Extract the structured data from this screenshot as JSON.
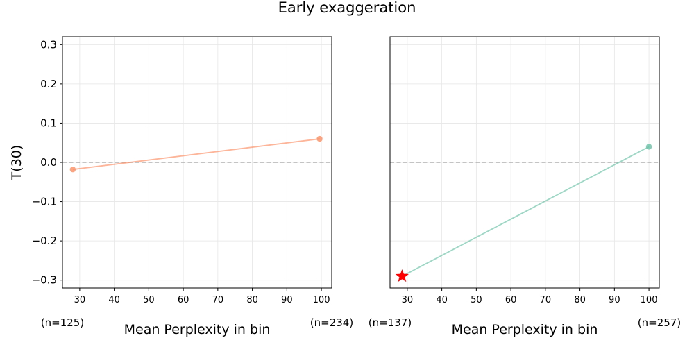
{
  "suptitle": "Early exaggeration",
  "chart_data": [
    {
      "type": "line",
      "xlabel": "Mean Perplexity in bin",
      "ylabel": "T(30)",
      "xlim": [
        25,
        103
      ],
      "ylim": [
        -0.32,
        0.32
      ],
      "xticks": [
        30,
        40,
        50,
        60,
        70,
        80,
        90,
        100
      ],
      "yticks": [
        -0.3,
        -0.2,
        -0.1,
        0.0,
        0.1,
        0.2,
        0.3
      ],
      "ytick_labels": [
        "−0.3",
        "−0.2",
        "−0.1",
        "0.0",
        "0.1",
        "0.2",
        "0.3"
      ],
      "show_yticks": true,
      "grid": true,
      "reference_line": 0,
      "color": "#fc8d62",
      "series": [
        {
          "x": [
            28,
            99.5
          ],
          "y": [
            -0.018,
            0.06
          ]
        }
      ],
      "count_labels": [
        "(n=125)",
        "(n=234)"
      ],
      "highlight": null
    },
    {
      "type": "line",
      "xlabel": "Mean Perplexity in bin",
      "ylabel": "",
      "xlim": [
        25,
        103
      ],
      "ylim": [
        -0.32,
        0.32
      ],
      "xticks": [
        30,
        40,
        50,
        60,
        70,
        80,
        90,
        100
      ],
      "yticks": [
        -0.3,
        -0.2,
        -0.1,
        0.0,
        0.1,
        0.2,
        0.3
      ],
      "ytick_labels": [],
      "show_yticks": false,
      "grid": true,
      "reference_line": 0,
      "color": "#66c2a5",
      "series": [
        {
          "x": [
            28.5,
            100
          ],
          "y": [
            -0.29,
            0.04
          ]
        }
      ],
      "count_labels": [
        "(n=137)",
        "(n=257)"
      ],
      "highlight": {
        "x": 28.5,
        "y": -0.29,
        "marker": "star",
        "color": "#ff0000"
      }
    }
  ]
}
